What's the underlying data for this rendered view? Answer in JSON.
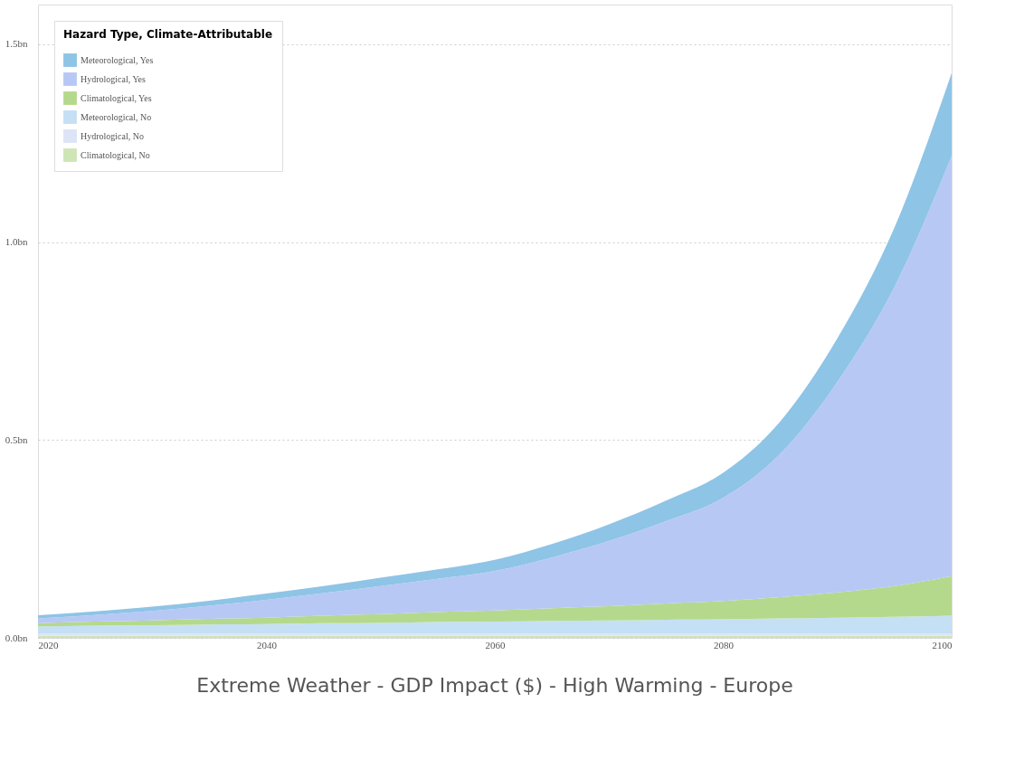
{
  "chart_data": {
    "type": "area",
    "title": "Extreme Weather - GDP Impact ($) - High Warming - Europe",
    "legend_title": "Hazard Type, Climate-Attributable",
    "stacked": true,
    "x": [
      2020,
      2025,
      2030,
      2035,
      2040,
      2045,
      2050,
      2055,
      2060,
      2065,
      2070,
      2075,
      2080,
      2085,
      2090,
      2095,
      2100
    ],
    "series": [
      {
        "name": "Climatological, No",
        "color": "#cfe5b5",
        "values": [
          0.005,
          0.005,
          0.005,
          0.005,
          0.005,
          0.005,
          0.005,
          0.005,
          0.005,
          0.005,
          0.005,
          0.005,
          0.005,
          0.005,
          0.005,
          0.005,
          0.005
        ]
      },
      {
        "name": "Hydrological, No",
        "color": "#dde4f6",
        "values": [
          0.006,
          0.006,
          0.006,
          0.006,
          0.006,
          0.006,
          0.006,
          0.006,
          0.006,
          0.006,
          0.006,
          0.006,
          0.006,
          0.006,
          0.006,
          0.006,
          0.006
        ]
      },
      {
        "name": "Meteorological, No",
        "color": "#c5e0f5",
        "values": [
          0.018,
          0.02,
          0.021,
          0.023,
          0.024,
          0.026,
          0.027,
          0.029,
          0.03,
          0.032,
          0.033,
          0.035,
          0.036,
          0.038,
          0.04,
          0.042,
          0.045
        ]
      },
      {
        "name": "Climatological, Yes",
        "color": "#b5d98c",
        "values": [
          0.008,
          0.01,
          0.012,
          0.014,
          0.016,
          0.019,
          0.022,
          0.025,
          0.028,
          0.032,
          0.036,
          0.041,
          0.046,
          0.054,
          0.064,
          0.078,
          0.1
        ]
      },
      {
        "name": "Hydrological, Yes",
        "color": "#b8c8f4",
        "values": [
          0.012,
          0.017,
          0.024,
          0.033,
          0.045,
          0.057,
          0.071,
          0.084,
          0.1,
          0.128,
          0.165,
          0.208,
          0.261,
          0.362,
          0.532,
          0.756,
          1.061
        ]
      },
      {
        "name": "Meteorological, Yes",
        "color": "#8ec4e6",
        "values": [
          0.008,
          0.009,
          0.011,
          0.013,
          0.016,
          0.018,
          0.021,
          0.024,
          0.028,
          0.034,
          0.042,
          0.052,
          0.063,
          0.082,
          0.11,
          0.15,
          0.21
        ]
      }
    ],
    "xlim": [
      2020,
      2100
    ],
    "xticks": [
      2020,
      2040,
      2060,
      2080,
      2100
    ],
    "ylim": [
      0,
      1.6
    ],
    "yticks": [
      {
        "value": 0,
        "label": "0.0bn"
      },
      {
        "value": 0.5,
        "label": "0.5bn"
      },
      {
        "value": 1.0,
        "label": "1.0bn"
      },
      {
        "value": 1.5,
        "label": "1.5bn"
      }
    ],
    "grid": "y",
    "legend": "top left"
  }
}
